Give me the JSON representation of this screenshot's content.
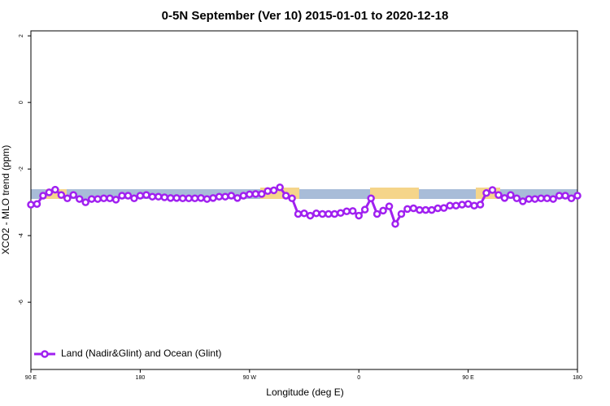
{
  "chart_data": {
    "type": "line",
    "title": "0-5N September (Ver 10)   2015-01-01 to 2020-12-18",
    "x_label": "Longitude (deg E)",
    "y_label": "XCO2 - MLO trend (ppm)",
    "xlim": [
      90,
      540
    ],
    "ylim": [
      -8.02,
      2.15
    ],
    "xticks": [
      {
        "value": 90,
        "label": "90 E"
      },
      180,
      {
        "value": 270,
        "label": "90 W"
      },
      {
        "value": 360,
        "label": "0"
      },
      {
        "value": 450,
        "label": "90 E"
      },
      {
        "value": 540,
        "label": "180"
      }
    ],
    "yticks": [
      2,
      0,
      -2,
      -4,
      -6
    ],
    "legend": "bottom-left",
    "x": [
      90,
      95,
      100,
      105,
      110,
      115,
      120,
      125,
      130,
      135,
      140,
      145,
      150,
      155,
      160,
      165,
      170,
      175,
      180,
      185,
      190,
      195,
      200,
      205,
      210,
      215,
      220,
      225,
      230,
      235,
      240,
      245,
      250,
      255,
      260,
      265,
      270,
      275,
      280,
      285,
      290,
      295,
      300,
      305,
      310,
      315,
      320,
      325,
      330,
      335,
      340,
      345,
      350,
      355,
      360,
      365,
      370,
      375,
      380,
      385,
      390,
      395,
      400,
      405,
      410,
      415,
      420,
      425,
      430,
      435,
      440,
      445,
      450,
      455,
      460,
      465,
      470,
      475,
      480,
      485,
      490,
      495,
      500,
      505,
      510,
      515,
      520,
      525,
      530,
      535,
      540
    ],
    "series": [
      {
        "name": "Land (Nadir&Glint) and Ocean (Glint)",
        "color": "#a020f0",
        "values": [
          -3.07,
          -3.05,
          -2.8,
          -2.7,
          -2.62,
          -2.78,
          -2.88,
          -2.78,
          -2.9,
          -3.0,
          -2.9,
          -2.9,
          -2.88,
          -2.88,
          -2.92,
          -2.8,
          -2.8,
          -2.88,
          -2.8,
          -2.78,
          -2.83,
          -2.83,
          -2.85,
          -2.87,
          -2.87,
          -2.88,
          -2.88,
          -2.88,
          -2.87,
          -2.9,
          -2.87,
          -2.83,
          -2.83,
          -2.8,
          -2.87,
          -2.8,
          -2.76,
          -2.75,
          -2.75,
          -2.66,
          -2.64,
          -2.55,
          -2.8,
          -2.88,
          -3.35,
          -3.33,
          -3.4,
          -3.33,
          -3.35,
          -3.35,
          -3.35,
          -3.32,
          -3.27,
          -3.26,
          -3.4,
          -3.22,
          -2.88,
          -3.35,
          -3.25,
          -3.12,
          -3.65,
          -3.35,
          -3.2,
          -3.18,
          -3.23,
          -3.23,
          -3.23,
          -3.18,
          -3.17,
          -3.1,
          -3.1,
          -3.07,
          -3.05,
          -3.1,
          -3.07,
          -2.72,
          -2.63,
          -2.78,
          -2.87,
          -2.78,
          -2.88,
          -2.97,
          -2.9,
          -2.9,
          -2.88,
          -2.88,
          -2.9,
          -2.8,
          -2.8,
          -2.88,
          -2.8
        ]
      }
    ]
  }
}
